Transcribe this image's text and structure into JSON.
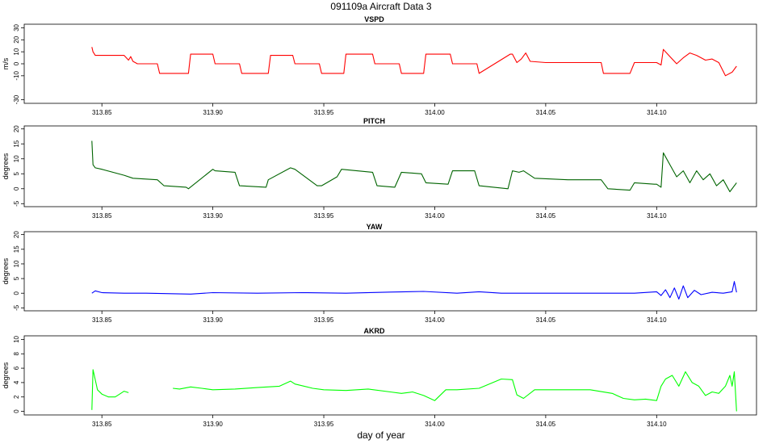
{
  "figure": {
    "title": "091109a   Aircraft Data 3",
    "xlabel": "day of year"
  },
  "chart_data": [
    {
      "type": "line",
      "title": "VSPD",
      "ylabel": "m/s",
      "color": "#ff0000",
      "xlim": [
        313.815,
        314.145
      ],
      "ylim": [
        -33,
        33
      ],
      "yticks": [
        -30,
        -10,
        0,
        10,
        20,
        30
      ],
      "yticklabels": [
        "-30",
        "-10",
        "0",
        "10",
        "20",
        "30"
      ],
      "xticks": [
        313.85,
        313.9,
        313.95,
        314.0,
        314.05,
        314.1
      ],
      "xticklabels": [
        "313.85",
        "313.90",
        "313.95",
        "314.00",
        "314.05",
        "314.10"
      ],
      "x": [
        313.8455,
        313.846,
        313.847,
        313.85,
        313.855,
        313.86,
        313.862,
        313.863,
        313.864,
        313.866,
        313.875,
        313.876,
        313.889,
        313.89,
        313.9,
        313.901,
        313.912,
        313.913,
        313.925,
        313.926,
        313.936,
        313.937,
        313.948,
        313.949,
        313.959,
        313.96,
        313.972,
        313.973,
        313.984,
        313.985,
        313.995,
        313.996,
        314.007,
        314.008,
        314.019,
        314.02,
        314.034,
        314.035,
        314.037,
        314.039,
        314.041,
        314.043,
        314.05,
        314.06,
        314.075,
        314.076,
        314.088,
        314.09,
        314.096,
        314.1,
        314.102,
        314.103,
        314.106,
        314.109,
        314.112,
        314.115,
        314.118,
        314.122,
        314.125,
        314.128,
        314.131,
        314.134,
        314.136
      ],
      "y": [
        14,
        10,
        7,
        7,
        7,
        7,
        3,
        6,
        2,
        0,
        0,
        -8,
        -8,
        8,
        8,
        0,
        0,
        -8,
        -8,
        7,
        7,
        0,
        0,
        -8,
        -8,
        8,
        8,
        0,
        0,
        -8,
        -8,
        8,
        8,
        0,
        0,
        -8,
        8,
        8,
        1,
        4,
        9,
        2,
        1,
        1,
        1,
        -8,
        -8,
        1,
        1,
        1,
        -1,
        12,
        6,
        0,
        5,
        9,
        7,
        3,
        4,
        1,
        -10,
        -7,
        -2
      ]
    },
    {
      "type": "line",
      "title": "PITCH",
      "ylabel": "degrees",
      "color": "#006400",
      "xlim": [
        313.815,
        314.145
      ],
      "ylim": [
        -6,
        21
      ],
      "yticks": [
        -5,
        0,
        5,
        10,
        15,
        20
      ],
      "yticklabels": [
        "-5",
        "0",
        "5",
        "10",
        "15",
        "20"
      ],
      "xticks": [
        313.85,
        313.9,
        313.95,
        314.0,
        314.05,
        314.1
      ],
      "xticklabels": [
        "313.85",
        "313.90",
        "313.95",
        "314.00",
        "314.05",
        "314.10"
      ],
      "x": [
        313.8455,
        313.846,
        313.847,
        313.85,
        313.86,
        313.864,
        313.875,
        313.878,
        313.888,
        313.889,
        313.9,
        313.901,
        313.91,
        313.912,
        313.924,
        313.925,
        313.935,
        313.937,
        313.947,
        313.949,
        313.956,
        313.958,
        313.972,
        313.974,
        313.982,
        313.985,
        313.994,
        313.996,
        314.006,
        314.008,
        314.018,
        314.02,
        314.033,
        314.035,
        314.038,
        314.04,
        314.045,
        314.06,
        314.075,
        314.078,
        314.088,
        314.09,
        314.099,
        314.1,
        314.102,
        314.103,
        314.106,
        314.109,
        314.112,
        314.115,
        314.118,
        314.121,
        314.124,
        314.127,
        314.13,
        314.133,
        314.136
      ],
      "y": [
        16,
        8,
        7,
        6.5,
        4.5,
        3.5,
        3,
        1,
        0.5,
        0,
        6.5,
        6,
        5.5,
        1,
        0.5,
        3,
        7,
        6.5,
        1,
        1,
        4,
        6.5,
        5.5,
        1,
        0.5,
        5.5,
        5,
        2,
        1.5,
        6,
        6,
        1,
        0,
        6,
        5.5,
        6,
        3.5,
        3,
        3,
        0,
        -0.5,
        2,
        1.5,
        1.5,
        0.5,
        12,
        8,
        4,
        6,
        2,
        6,
        3,
        5,
        1,
        3,
        -1,
        2
      ]
    },
    {
      "type": "line",
      "title": "YAW",
      "ylabel": "degrees",
      "color": "#0000ff",
      "xlim": [
        313.815,
        314.145
      ],
      "ylim": [
        -6,
        21
      ],
      "yticks": [
        -5,
        0,
        5,
        10,
        15,
        20
      ],
      "yticklabels": [
        "-5",
        "0",
        "5",
        "10",
        "15",
        "20"
      ],
      "xticks": [
        313.85,
        313.9,
        313.95,
        314.0,
        314.05,
        314.1
      ],
      "xticklabels": [
        "313.85",
        "313.90",
        "313.95",
        "314.00",
        "314.05",
        "314.10"
      ],
      "x": [
        313.8455,
        313.847,
        313.85,
        313.86,
        313.87,
        313.89,
        313.9,
        313.92,
        313.94,
        313.96,
        313.98,
        313.995,
        314.01,
        314.02,
        314.03,
        314.05,
        314.07,
        314.09,
        314.1,
        314.102,
        314.104,
        314.106,
        314.108,
        314.11,
        314.112,
        314.114,
        314.117,
        314.12,
        314.125,
        314.13,
        314.134,
        314.135,
        314.136
      ],
      "y": [
        0,
        0.8,
        0.2,
        0,
        0,
        -0.3,
        0.2,
        0,
        0.2,
        0,
        0.4,
        0.6,
        0,
        0.5,
        0,
        0,
        0,
        0,
        0.5,
        -0.8,
        1.2,
        -1.5,
        1.8,
        -2,
        2.5,
        -1.5,
        1,
        -0.5,
        0.3,
        0,
        0.5,
        4,
        0.3
      ]
    },
    {
      "type": "line",
      "title": "AKRD",
      "ylabel": "degrees",
      "color": "#00ff00",
      "xlim": [
        313.815,
        314.145
      ],
      "ylim": [
        -0.5,
        10.5
      ],
      "yticks": [
        0,
        2,
        4,
        6,
        8,
        10
      ],
      "yticklabels": [
        "0",
        "2",
        "4",
        "6",
        "8",
        "10"
      ],
      "xticks": [
        313.85,
        313.9,
        313.95,
        314.0,
        314.05,
        314.1
      ],
      "xticklabels": [
        "313.85",
        "313.90",
        "313.95",
        "314.00",
        "314.05",
        "314.10"
      ],
      "x": [
        313.8455,
        313.846,
        313.848,
        313.85,
        313.853,
        313.856,
        313.858,
        313.86,
        313.862,
        null,
        313.882,
        313.885,
        313.89,
        313.895,
        313.9,
        313.91,
        313.92,
        313.93,
        313.935,
        313.937,
        313.945,
        313.95,
        313.96,
        313.97,
        313.98,
        313.985,
        313.99,
        313.995,
        314.0,
        314.005,
        314.01,
        314.02,
        314.03,
        314.035,
        314.037,
        314.04,
        314.045,
        314.05,
        314.06,
        314.07,
        314.08,
        314.085,
        314.09,
        314.095,
        314.1,
        314.102,
        314.104,
        314.107,
        314.11,
        314.113,
        314.116,
        314.119,
        314.122,
        314.125,
        314.128,
        314.131,
        314.133,
        314.134,
        314.135,
        314.136
      ],
      "y": [
        0.2,
        5.8,
        3,
        2.4,
        2,
        2,
        2.4,
        2.8,
        2.6,
        null,
        3.2,
        3.1,
        3.4,
        3.2,
        3,
        3.1,
        3.3,
        3.5,
        4.2,
        3.8,
        3.2,
        3,
        2.9,
        3.1,
        2.7,
        2.5,
        2.7,
        2.2,
        1.5,
        3,
        3,
        3.2,
        4.5,
        4.4,
        2.3,
        1.8,
        3,
        3,
        3,
        3,
        2.5,
        1.8,
        1.6,
        1.7,
        1.5,
        3.5,
        4.5,
        5,
        3.5,
        5.5,
        4,
        3.5,
        2.2,
        2.7,
        2.5,
        3.5,
        5,
        3.5,
        5.5,
        0
      ]
    }
  ]
}
